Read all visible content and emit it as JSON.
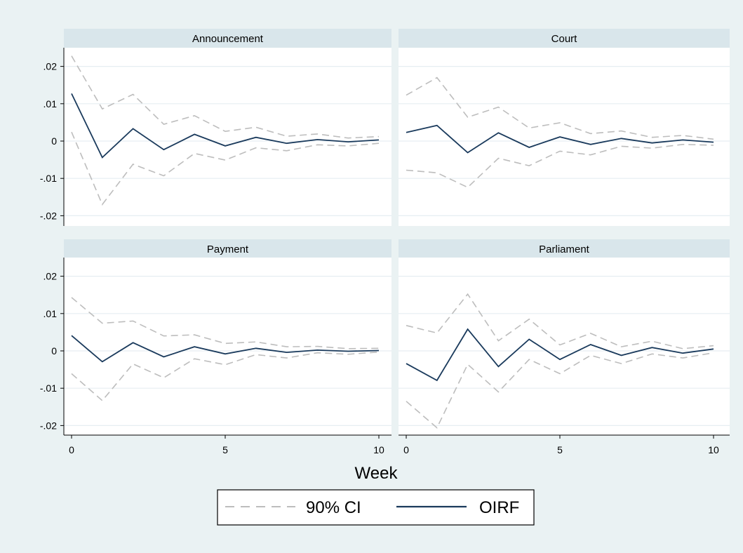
{
  "chart_data": {
    "type": "line",
    "layout": "2x2 facets",
    "xlabel": "Week",
    "x": [
      0,
      1,
      2,
      3,
      4,
      5,
      6,
      7,
      8,
      9,
      10
    ],
    "x_ticks": [
      0,
      5,
      10
    ],
    "xlim": [
      0,
      10
    ],
    "ylim": [
      -0.02,
      0.02
    ],
    "y_ticks": [
      {
        "value": 0.02,
        "label": ".02"
      },
      {
        "value": 0.01,
        "label": ".01"
      },
      {
        "value": 0,
        "label": "0"
      },
      {
        "value": -0.01,
        "label": "-.01"
      },
      {
        "value": -0.02,
        "label": "-.02"
      }
    ],
    "grid": true,
    "legend": {
      "placement": "bottom",
      "entries": [
        {
          "label": "90% CI",
          "style": "dashed",
          "color": "#bdbdbd"
        },
        {
          "label": "OIRF",
          "style": "solid",
          "color": "#1a3a5c"
        }
      ]
    },
    "colors": {
      "background": "#eaf2f3",
      "plot_area": "#ffffff",
      "strip": "#d9e6eb",
      "grid": "#e6eef2",
      "ci": "#bdbdbd",
      "oirf": "#1a3a5c"
    },
    "panels": [
      {
        "title": "Announcement",
        "series": [
          {
            "role": "oirf",
            "values": [
              0.0127,
              -0.0044,
              0.0033,
              -0.0023,
              0.0018,
              -0.0013,
              0.001,
              -0.0006,
              0.0004,
              -0.0002,
              0.0003
            ]
          },
          {
            "role": "ci_upper",
            "values": [
              0.0228,
              0.0086,
              0.0125,
              0.0045,
              0.0068,
              0.0026,
              0.0037,
              0.0013,
              0.0019,
              0.0008,
              0.0012
            ]
          },
          {
            "role": "ci_lower",
            "values": [
              0.0024,
              -0.017,
              -0.0062,
              -0.0093,
              -0.0033,
              -0.0051,
              -0.0018,
              -0.0026,
              -0.001,
              -0.0013,
              -0.0006
            ]
          }
        ]
      },
      {
        "title": "Court",
        "series": [
          {
            "role": "oirf",
            "values": [
              0.0023,
              0.0042,
              -0.0031,
              0.0022,
              -0.0017,
              0.0011,
              -0.0009,
              0.0007,
              -0.0005,
              0.0003,
              -0.0003
            ]
          },
          {
            "role": "ci_upper",
            "values": [
              0.0123,
              0.017,
              0.0064,
              0.0091,
              0.0035,
              0.0049,
              0.002,
              0.0027,
              0.001,
              0.0015,
              0.0005
            ]
          },
          {
            "role": "ci_lower",
            "values": [
              -0.0078,
              -0.0085,
              -0.0124,
              -0.0046,
              -0.0066,
              -0.0027,
              -0.0037,
              -0.0014,
              -0.0019,
              -0.0009,
              -0.0011
            ]
          }
        ]
      },
      {
        "title": "Payment",
        "series": [
          {
            "role": "oirf",
            "values": [
              0.0041,
              -0.0029,
              0.0022,
              -0.0016,
              0.0011,
              -0.0008,
              0.0007,
              -0.0004,
              0.0002,
              -0.0001,
              0.0001
            ]
          },
          {
            "role": "ci_upper",
            "values": [
              0.0143,
              0.0074,
              0.008,
              0.004,
              0.0043,
              0.002,
              0.0024,
              0.0011,
              0.0012,
              0.0006,
              0.0007
            ]
          },
          {
            "role": "ci_lower",
            "values": [
              -0.0061,
              -0.0133,
              -0.0035,
              -0.0072,
              -0.0021,
              -0.0037,
              -0.001,
              -0.0019,
              -0.0005,
              -0.0009,
              -0.0003
            ]
          }
        ]
      },
      {
        "title": "Parliament",
        "series": [
          {
            "role": "oirf",
            "values": [
              -0.0034,
              -0.0079,
              0.0058,
              -0.0042,
              0.0031,
              -0.0023,
              0.0017,
              -0.0012,
              0.0009,
              -0.0006,
              0.0005
            ]
          },
          {
            "role": "ci_upper",
            "values": [
              0.0068,
              0.0048,
              0.0152,
              0.0027,
              0.0085,
              0.0016,
              0.0047,
              0.0011,
              0.0026,
              0.0006,
              0.0014
            ]
          },
          {
            "role": "ci_lower",
            "values": [
              -0.0135,
              -0.0206,
              -0.0036,
              -0.011,
              -0.0023,
              -0.0061,
              -0.0012,
              -0.0034,
              -0.0008,
              -0.0019,
              -0.0005
            ]
          }
        ]
      }
    ]
  }
}
